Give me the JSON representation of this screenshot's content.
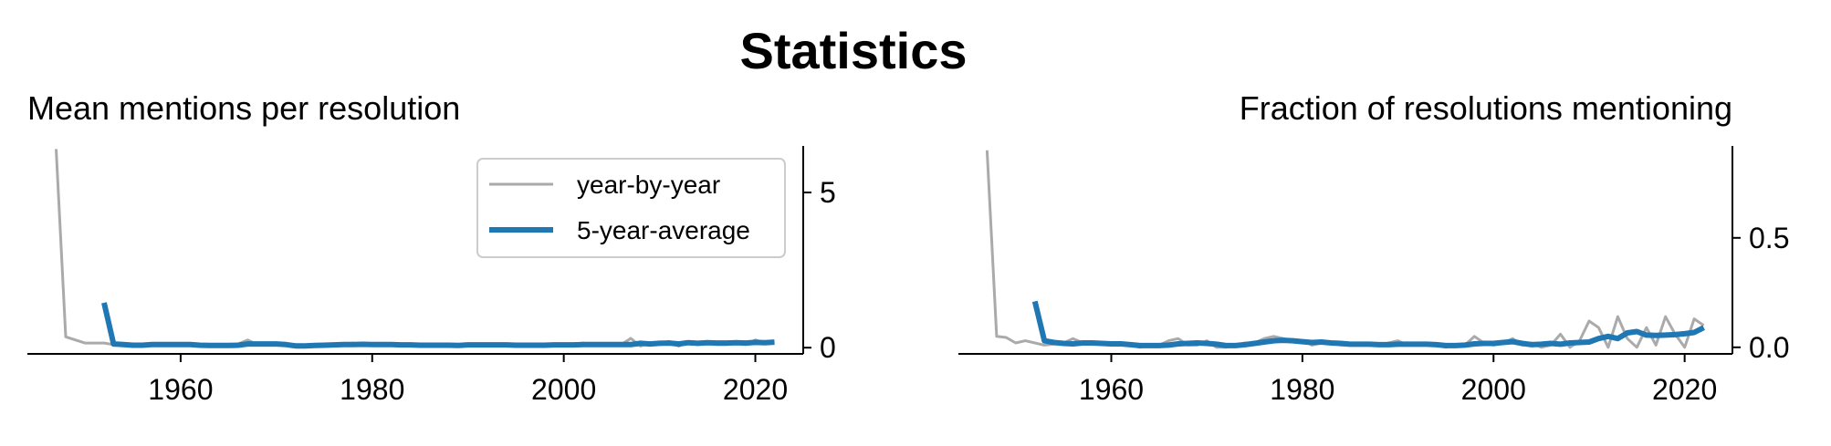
{
  "figure": {
    "suptitle": "Statistics"
  },
  "chart_data": [
    {
      "type": "line",
      "title": "Mean mentions per resolution",
      "xlabel": "",
      "ylabel": "",
      "xlim": [
        1944,
        2025
      ],
      "ylim": [
        -0.2,
        6.5
      ],
      "xticks": [
        1960,
        1980,
        2000,
        2020
      ],
      "yticks": [
        0,
        5
      ],
      "ytick_labels": [
        "0",
        "5"
      ],
      "yaxis_side": "right",
      "grid": false,
      "legend": "top-right",
      "series": [
        {
          "name": "year-by-year",
          "color": "#aaaaaa",
          "x": [
            1947,
            1948,
            1949,
            1950,
            1951,
            1952,
            1953,
            1954,
            1955,
            1956,
            1957,
            1958,
            1959,
            1960,
            1961,
            1962,
            1963,
            1964,
            1965,
            1966,
            1967,
            1968,
            1969,
            1970,
            1971,
            1972,
            1973,
            1974,
            1975,
            1976,
            1977,
            1978,
            1979,
            1980,
            1981,
            1982,
            1983,
            1984,
            1985,
            1986,
            1987,
            1988,
            1989,
            1990,
            1991,
            1992,
            1993,
            1994,
            1995,
            1996,
            1997,
            1998,
            1999,
            2000,
            2001,
            2002,
            2003,
            2004,
            2005,
            2006,
            2007,
            2008,
            2009,
            2010,
            2011,
            2012,
            2013,
            2014,
            2015,
            2016,
            2017,
            2018,
            2019,
            2020,
            2021,
            2022
          ],
          "y": [
            6.4,
            0.35,
            0.25,
            0.15,
            0.15,
            0.15,
            0.1,
            0.1,
            0.08,
            0.1,
            0.12,
            0.1,
            0.1,
            0.1,
            0.12,
            0.1,
            0.08,
            0.08,
            0.1,
            0.12,
            0.25,
            0.1,
            0.1,
            0.12,
            0.1,
            0.05,
            0.08,
            0.1,
            0.1,
            0.12,
            0.1,
            0.15,
            0.1,
            0.12,
            0.1,
            0.1,
            0.08,
            0.1,
            0.08,
            0.1,
            0.08,
            0.1,
            0.08,
            0.1,
            0.12,
            0.1,
            0.1,
            0.08,
            0.1,
            0.08,
            0.1,
            0.1,
            0.12,
            0.08,
            0.1,
            0.15,
            0.08,
            0.1,
            0.12,
            0.1,
            0.3,
            0.05,
            0.15,
            0.15,
            0.2,
            0.05,
            0.2,
            0.1,
            0.2,
            0.1,
            0.1,
            0.2,
            0.1,
            0.25,
            0.15,
            0.2
          ]
        },
        {
          "name": "5-year-average",
          "color": "#1f77b4",
          "x": [
            1952,
            1953,
            1954,
            1955,
            1956,
            1957,
            1958,
            1959,
            1960,
            1961,
            1962,
            1963,
            1964,
            1965,
            1966,
            1967,
            1968,
            1969,
            1970,
            1971,
            1972,
            1973,
            1974,
            1975,
            1976,
            1977,
            1978,
            1979,
            1980,
            1981,
            1982,
            1983,
            1984,
            1985,
            1986,
            1987,
            1988,
            1989,
            1990,
            1991,
            1992,
            1993,
            1994,
            1995,
            1996,
            1997,
            1998,
            1999,
            2000,
            2001,
            2002,
            2003,
            2004,
            2005,
            2006,
            2007,
            2008,
            2009,
            2010,
            2011,
            2012,
            2013,
            2014,
            2015,
            2016,
            2017,
            2018,
            2019,
            2020,
            2021,
            2022
          ],
          "y": [
            1.45,
            0.12,
            0.1,
            0.08,
            0.08,
            0.1,
            0.1,
            0.1,
            0.1,
            0.1,
            0.08,
            0.07,
            0.07,
            0.07,
            0.08,
            0.12,
            0.12,
            0.12,
            0.12,
            0.1,
            0.06,
            0.06,
            0.07,
            0.08,
            0.09,
            0.1,
            0.1,
            0.11,
            0.1,
            0.1,
            0.1,
            0.09,
            0.09,
            0.08,
            0.08,
            0.08,
            0.08,
            0.07,
            0.09,
            0.09,
            0.09,
            0.09,
            0.09,
            0.08,
            0.08,
            0.08,
            0.08,
            0.09,
            0.09,
            0.09,
            0.1,
            0.1,
            0.1,
            0.1,
            0.1,
            0.1,
            0.14,
            0.12,
            0.14,
            0.15,
            0.12,
            0.16,
            0.14,
            0.16,
            0.15,
            0.15,
            0.16,
            0.15,
            0.17,
            0.16,
            0.18
          ]
        }
      ]
    },
    {
      "type": "line",
      "title": "Fraction of resolutions mentioning",
      "xlabel": "",
      "ylabel": "",
      "xlim": [
        1944,
        2025
      ],
      "ylim": [
        -0.03,
        0.92
      ],
      "xticks": [
        1960,
        1980,
        2000,
        2020
      ],
      "yticks": [
        0.0,
        0.5
      ],
      "ytick_labels": [
        "0.0",
        "0.5"
      ],
      "yaxis_side": "right",
      "grid": false,
      "legend": "none",
      "series": [
        {
          "name": "year-by-year",
          "color": "#aaaaaa",
          "x": [
            1947,
            1948,
            1949,
            1950,
            1951,
            1952,
            1953,
            1954,
            1955,
            1956,
            1957,
            1958,
            1959,
            1960,
            1961,
            1962,
            1963,
            1964,
            1965,
            1966,
            1967,
            1968,
            1969,
            1970,
            1971,
            1972,
            1973,
            1974,
            1975,
            1976,
            1977,
            1978,
            1979,
            1980,
            1981,
            1982,
            1983,
            1984,
            1985,
            1986,
            1987,
            1988,
            1989,
            1990,
            1991,
            1992,
            1993,
            1994,
            1995,
            1996,
            1997,
            1998,
            1999,
            2000,
            2001,
            2002,
            2003,
            2004,
            2005,
            2006,
            2007,
            2008,
            2009,
            2010,
            2011,
            2012,
            2013,
            2014,
            2015,
            2016,
            2017,
            2018,
            2019,
            2020,
            2021,
            2022
          ],
          "y": [
            0.9,
            0.05,
            0.045,
            0.02,
            0.03,
            0.02,
            0.01,
            0.015,
            0.02,
            0.04,
            0.02,
            0.02,
            0.015,
            0.02,
            0.01,
            0.01,
            0.0,
            0.01,
            0.01,
            0.03,
            0.04,
            0.01,
            0.01,
            0.03,
            0.0,
            0.0,
            0.01,
            0.02,
            0.02,
            0.04,
            0.05,
            0.04,
            0.03,
            0.03,
            0.01,
            0.02,
            0.02,
            0.01,
            0.01,
            0.01,
            0.02,
            0.01,
            0.02,
            0.03,
            0.01,
            0.01,
            0.01,
            0.01,
            0.0,
            0.01,
            0.01,
            0.05,
            0.02,
            0.01,
            0.02,
            0.04,
            0.01,
            0.02,
            0.0,
            0.01,
            0.06,
            0.0,
            0.03,
            0.12,
            0.09,
            0.0,
            0.14,
            0.04,
            0.0,
            0.09,
            0.01,
            0.14,
            0.06,
            0.0,
            0.13,
            0.1
          ]
        },
        {
          "name": "5-year-average",
          "color": "#1f77b4",
          "x": [
            1952,
            1953,
            1954,
            1955,
            1956,
            1957,
            1958,
            1959,
            1960,
            1961,
            1962,
            1963,
            1964,
            1965,
            1966,
            1967,
            1968,
            1969,
            1970,
            1971,
            1972,
            1973,
            1974,
            1975,
            1976,
            1977,
            1978,
            1979,
            1980,
            1981,
            1982,
            1983,
            1984,
            1985,
            1986,
            1987,
            1988,
            1989,
            1990,
            1991,
            1992,
            1993,
            1994,
            1995,
            1996,
            1997,
            1998,
            1999,
            2000,
            2001,
            2002,
            2003,
            2004,
            2005,
            2006,
            2007,
            2008,
            2009,
            2010,
            2011,
            2012,
            2013,
            2014,
            2015,
            2016,
            2017,
            2018,
            2019,
            2020,
            2021,
            2022
          ],
          "y": [
            0.21,
            0.03,
            0.022,
            0.018,
            0.016,
            0.02,
            0.02,
            0.018,
            0.016,
            0.016,
            0.012,
            0.008,
            0.008,
            0.008,
            0.01,
            0.016,
            0.018,
            0.02,
            0.018,
            0.014,
            0.008,
            0.008,
            0.012,
            0.018,
            0.024,
            0.03,
            0.032,
            0.03,
            0.026,
            0.022,
            0.024,
            0.02,
            0.018,
            0.014,
            0.014,
            0.014,
            0.012,
            0.012,
            0.014,
            0.014,
            0.014,
            0.014,
            0.012,
            0.008,
            0.008,
            0.01,
            0.016,
            0.018,
            0.018,
            0.022,
            0.026,
            0.018,
            0.012,
            0.014,
            0.018,
            0.014,
            0.02,
            0.022,
            0.024,
            0.04,
            0.05,
            0.04,
            0.066,
            0.072,
            0.056,
            0.054,
            0.056,
            0.058,
            0.062,
            0.068,
            0.09
          ]
        }
      ]
    }
  ]
}
